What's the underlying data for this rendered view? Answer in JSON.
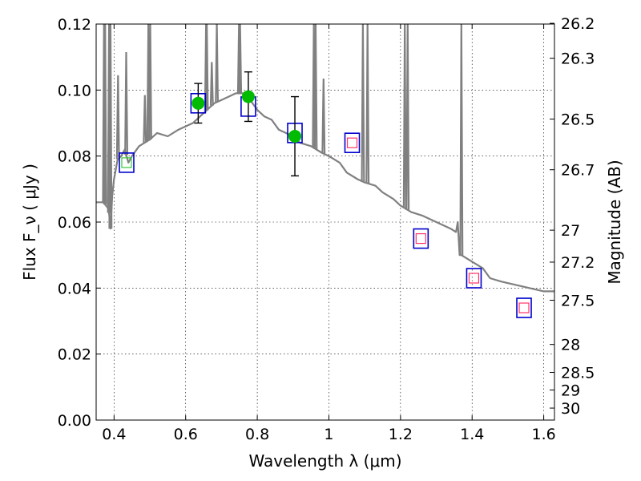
{
  "chart_data": {
    "type": "scatter",
    "xlabel": "Wavelength  λ (μm)",
    "ylabel": "Flux  F_ν  ( μJy )",
    "y2label": "Magnitude (AB)",
    "xlim": [
      0.35,
      1.63
    ],
    "ylim": [
      0.0,
      0.12
    ],
    "xticks": [
      0.4,
      0.6,
      0.8,
      1.0,
      1.2,
      1.4,
      1.6
    ],
    "xtick_labels": [
      "0.4",
      "0.6",
      "0.8",
      "1",
      "1.2",
      "1.4",
      "1.6"
    ],
    "yticks": [
      0.0,
      0.02,
      0.04,
      0.06,
      0.08,
      0.1,
      0.12
    ],
    "ytick_labels": [
      "0.00",
      "0.02",
      "0.04",
      "0.06",
      "0.08",
      "0.10",
      "0.12"
    ],
    "y2ticks": [
      26.2,
      26.3,
      26.5,
      26.7,
      27,
      27.2,
      27.5,
      28,
      28.5,
      29,
      30
    ],
    "y2tick_labels": [
      "26.2",
      "26.3",
      "26.5",
      "26.7",
      "27",
      "27.2",
      "27.5",
      "28",
      "28.5",
      "29",
      "30"
    ],
    "grid": true,
    "series": [
      {
        "kind": "line",
        "color": "#808080",
        "x": [
          0.35,
          0.37,
          0.385,
          0.39,
          0.395,
          0.4,
          0.41,
          0.42,
          0.425,
          0.43,
          0.44,
          0.45,
          0.47,
          0.5,
          0.52,
          0.55,
          0.58,
          0.6,
          0.62,
          0.64,
          0.66,
          0.68,
          0.7,
          0.72,
          0.74,
          0.76,
          0.78,
          0.8,
          0.82,
          0.84,
          0.86,
          0.88,
          0.9,
          0.92,
          0.95,
          0.98,
          1.0,
          1.03,
          1.05,
          1.08,
          1.1,
          1.13,
          1.15,
          1.18,
          1.2,
          1.23,
          1.26,
          1.3,
          1.34,
          1.355,
          1.36,
          1.365,
          1.37,
          1.4,
          1.43,
          1.45,
          1.48,
          1.52,
          1.56,
          1.6,
          1.63
        ],
        "y": [
          0.066,
          0.066,
          0.064,
          0.058,
          0.068,
          0.073,
          0.079,
          0.08,
          0.081,
          0.082,
          0.078,
          0.08,
          0.083,
          0.085,
          0.087,
          0.086,
          0.088,
          0.089,
          0.09,
          0.092,
          0.094,
          0.096,
          0.097,
          0.098,
          0.099,
          0.099,
          0.097,
          0.094,
          0.092,
          0.091,
          0.088,
          0.087,
          0.086,
          0.084,
          0.083,
          0.081,
          0.08,
          0.078,
          0.075,
          0.073,
          0.072,
          0.071,
          0.069,
          0.067,
          0.065,
          0.063,
          0.062,
          0.06,
          0.058,
          0.057,
          0.06,
          0.05,
          0.05,
          0.048,
          0.046,
          0.043,
          0.042,
          0.041,
          0.04,
          0.039,
          0.039
        ]
      },
      {
        "kind": "emission_lines",
        "color": "#808080",
        "lines": [
          {
            "x": 0.372,
            "peak": 0.12
          },
          {
            "x": 0.375,
            "peak": 0.12
          },
          {
            "x": 0.386,
            "peak": 0.12
          },
          {
            "x": 0.39,
            "peak": 0.12
          },
          {
            "x": 0.411,
            "peak": 0.104
          },
          {
            "x": 0.434,
            "peak": 0.111
          },
          {
            "x": 0.486,
            "peak": 0.098
          },
          {
            "x": 0.496,
            "peak": 0.12
          },
          {
            "x": 0.501,
            "peak": 0.12
          },
          {
            "x": 0.657,
            "peak": 0.12
          },
          {
            "x": 0.659,
            "peak": 0.12
          },
          {
            "x": 0.673,
            "peak": 0.108
          },
          {
            "x": 0.687,
            "peak": 0.12
          },
          {
            "x": 0.749,
            "peak": 0.12
          },
          {
            "x": 0.752,
            "peak": 0.12
          },
          {
            "x": 0.958,
            "peak": 0.12
          },
          {
            "x": 0.963,
            "peak": 0.12
          },
          {
            "x": 0.985,
            "peak": 0.103
          },
          {
            "x": 1.095,
            "peak": 0.12
          },
          {
            "x": 1.108,
            "peak": 0.12
          },
          {
            "x": 1.212,
            "peak": 0.12
          },
          {
            "x": 1.22,
            "peak": 0.12
          },
          {
            "x": 1.37,
            "peak": 0.12
          }
        ]
      },
      {
        "kind": "model_points",
        "marker": "square",
        "color": "#0000cc",
        "x": [
          0.435,
          0.635,
          0.775,
          0.905,
          1.065,
          1.257,
          1.405,
          1.545
        ],
        "y": [
          0.078,
          0.096,
          0.095,
          0.087,
          0.084,
          0.055,
          0.043,
          0.034
        ]
      },
      {
        "kind": "upper_limits",
        "marker": "square",
        "color": "#ff3366",
        "x": [
          1.065,
          1.257,
          1.405,
          1.545
        ],
        "y": [
          0.084,
          0.055,
          0.043,
          0.034
        ]
      },
      {
        "kind": "faint_points",
        "marker": "square",
        "color": "#33cc33",
        "x": [
          0.435
        ],
        "y": [
          0.078
        ]
      },
      {
        "kind": "observed",
        "marker": "circle",
        "color": "#00bb00",
        "x": [
          0.635,
          0.775,
          0.905
        ],
        "y": [
          0.096,
          0.098,
          0.086
        ],
        "yerr": [
          0.006,
          0.0075,
          0.012
        ]
      }
    ]
  }
}
